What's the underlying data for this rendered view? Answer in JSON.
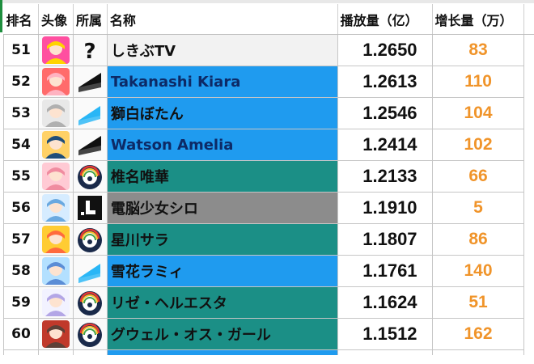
{
  "headers": {
    "rank": "排名",
    "avatar": "头像",
    "affiliation": "所属",
    "name": "名称",
    "plays": "播放量（亿）",
    "growth": "增长量（万）"
  },
  "colors": {
    "growth_text": "#f0942a",
    "row_blue": "#1f9bef",
    "row_teal": "#1b8f86",
    "row_gray": "#8c8c8c",
    "row_light": "#f2f2f2"
  },
  "rows": [
    {
      "rank": "51",
      "name": "しきぶTV",
      "plays": "1.2650",
      "growth": "83",
      "row_color": "#f2f2f2",
      "name_color": "#111111",
      "affiliation_icon": "question-mark-icon",
      "avatar_icon": "avatar-shikibu-icon"
    },
    {
      "rank": "52",
      "name": "Takanashi Kiara",
      "plays": "1.2613",
      "growth": "110",
      "row_color": "#1f9bef",
      "name_color": "#0d2a66",
      "affiliation_icon": "hololive-en-icon",
      "avatar_icon": "avatar-kiara-icon"
    },
    {
      "rank": "53",
      "name": "獅白ぼたん",
      "plays": "1.2546",
      "growth": "104",
      "row_color": "#1f9bef",
      "name_color": "#111111",
      "affiliation_icon": "hololive-icon",
      "avatar_icon": "avatar-botan-icon"
    },
    {
      "rank": "54",
      "name": "Watson Amelia",
      "plays": "1.2414",
      "growth": "102",
      "row_color": "#1f9bef",
      "name_color": "#0d2a66",
      "affiliation_icon": "hololive-en-icon",
      "avatar_icon": "avatar-amelia-icon"
    },
    {
      "rank": "55",
      "name": "椎名唯華",
      "plays": "1.2133",
      "growth": "66",
      "row_color": "#1b8f86",
      "name_color": "#111111",
      "affiliation_icon": "nijisanji-icon",
      "avatar_icon": "avatar-shiina-icon"
    },
    {
      "rank": "56",
      "name": "電脳少女シロ",
      "plays": "1.1910",
      "growth": "5",
      "row_color": "#8c8c8c",
      "name_color": "#111111",
      "affiliation_icon": "dotlive-icon",
      "avatar_icon": "avatar-siro-icon"
    },
    {
      "rank": "57",
      "name": "星川サラ",
      "plays": "1.1807",
      "growth": "86",
      "row_color": "#1b8f86",
      "name_color": "#111111",
      "affiliation_icon": "nijisanji-icon",
      "avatar_icon": "avatar-sara-icon"
    },
    {
      "rank": "58",
      "name": "雪花ラミィ",
      "plays": "1.1761",
      "growth": "140",
      "row_color": "#1f9bef",
      "name_color": "#111111",
      "affiliation_icon": "hololive-icon",
      "avatar_icon": "avatar-lamy-icon"
    },
    {
      "rank": "59",
      "name": "リゼ・ヘルエスタ",
      "plays": "1.1624",
      "growth": "51",
      "row_color": "#1b8f86",
      "name_color": "#111111",
      "affiliation_icon": "nijisanji-icon",
      "avatar_icon": "avatar-lize-icon"
    },
    {
      "rank": "60",
      "name": "グウェル・オス・ガール",
      "plays": "1.1512",
      "growth": "162",
      "row_color": "#1b8f86",
      "name_color": "#111111",
      "affiliation_icon": "nijisanji-icon",
      "avatar_icon": "avatar-gwelu-icon"
    }
  ]
}
